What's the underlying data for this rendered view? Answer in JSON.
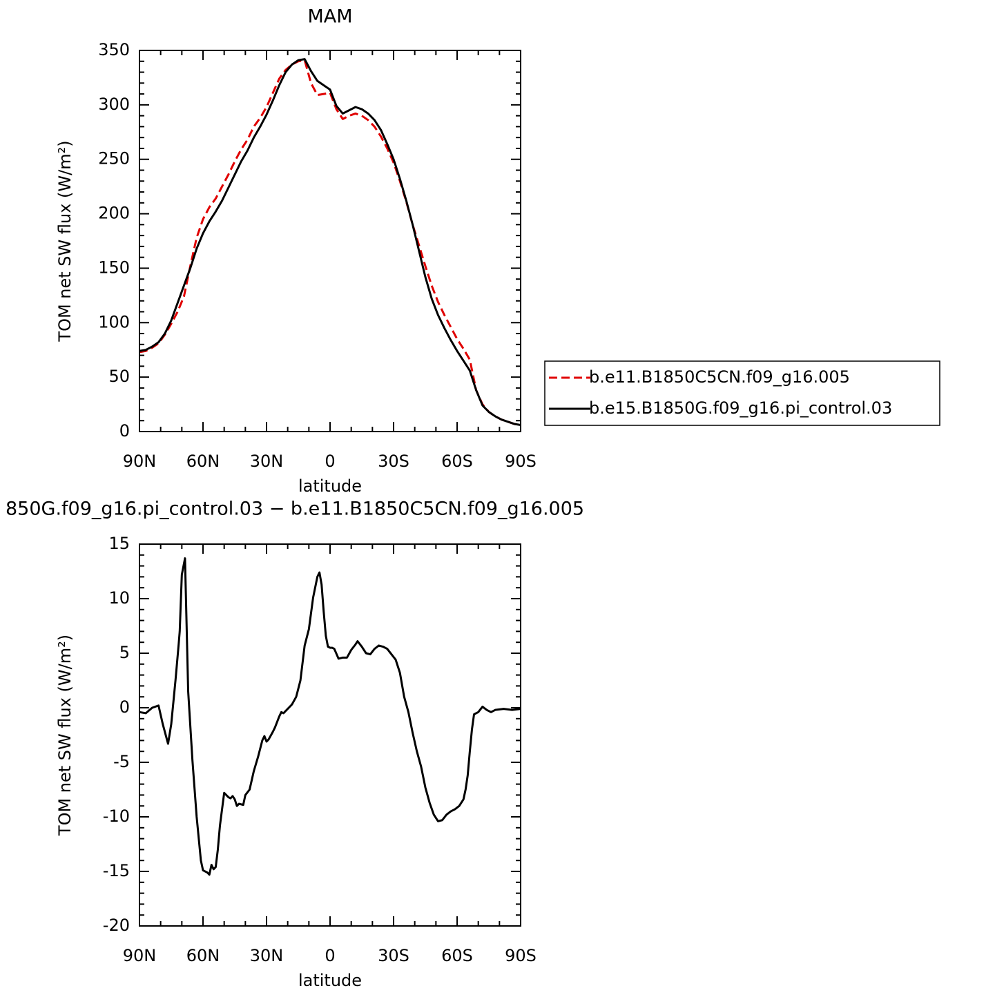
{
  "chart_data": [
    {
      "type": "line",
      "title": "MAM",
      "x_label": "latitude",
      "y_label": "TOM net SW flux (W/m²)",
      "xlim": [
        90,
        -90
      ],
      "ylim": [
        0,
        350
      ],
      "xticks": [
        {
          "value": 90,
          "label": "90N"
        },
        {
          "value": 60,
          "label": "60N"
        },
        {
          "value": 30,
          "label": "30N"
        },
        0,
        {
          "value": -30,
          "label": "30S"
        },
        {
          "value": -60,
          "label": "60S"
        },
        {
          "value": -90,
          "label": "90S"
        }
      ],
      "yticks": [
        0,
        50,
        100,
        150,
        200,
        250,
        300,
        350
      ],
      "legend": "right",
      "x": [
        90,
        87,
        84,
        81,
        78,
        75,
        72,
        69,
        66,
        63,
        60,
        57,
        54,
        51,
        48,
        45,
        42,
        39,
        36,
        33,
        30,
        27,
        24,
        21,
        18,
        15,
        12,
        9,
        6,
        3,
        0,
        -3,
        -6,
        -9,
        -12,
        -15,
        -18,
        -21,
        -24,
        -27,
        -30,
        -33,
        -36,
        -39,
        -42,
        -45,
        -48,
        -51,
        -54,
        -57,
        -60,
        -63,
        -66,
        -69,
        -72,
        -75,
        -78,
        -81,
        -84,
        -87,
        -90
      ],
      "series": [
        {
          "name": "b.e11.B1850C5CN.f09_g16.005",
          "color": "#e00000",
          "dashed": true,
          "values": [
            73,
            74,
            77,
            81,
            89,
            99,
            110,
            124,
            152,
            178,
            195,
            206,
            214,
            225,
            236,
            248,
            259,
            268,
            280,
            288,
            298,
            311,
            324,
            332,
            337,
            340,
            341,
            320,
            309,
            310,
            311,
            296,
            287,
            290,
            292,
            290,
            286,
            280,
            271,
            260,
            247,
            230,
            211,
            190,
            171,
            152,
            134,
            119,
            107,
            96,
            85,
            76,
            66,
            38,
            25,
            18,
            14,
            11,
            9,
            7,
            6
          ]
        },
        {
          "name": "b.e15.B1850G.f09_g16.pi_control.03",
          "color": "#000000",
          "dashed": false,
          "values": [
            74,
            75,
            78,
            82,
            90,
            102,
            118,
            134,
            150,
            168,
            182,
            193,
            202,
            212,
            224,
            236,
            248,
            258,
            270,
            280,
            291,
            304,
            318,
            330,
            337,
            341,
            342,
            331,
            322,
            318,
            314,
            299,
            292,
            295,
            298,
            296,
            292,
            286,
            277,
            264,
            250,
            232,
            212,
            190,
            166,
            142,
            122,
            107,
            95,
            84,
            74,
            65,
            56,
            38,
            24,
            18,
            14,
            11,
            9,
            7,
            6
          ]
        }
      ]
    },
    {
      "type": "line",
      "title": "850G.f09_g16.pi_control.03 − b.e11.B1850C5CN.f09_g16.005",
      "x_label": "latitude",
      "y_label": "TOM net SW flux (W/m²)",
      "xlim": [
        90,
        -90
      ],
      "ylim": [
        -20,
        15
      ],
      "xticks": [
        {
          "value": 90,
          "label": "90N"
        },
        {
          "value": 60,
          "label": "60N"
        },
        {
          "value": 30,
          "label": "30N"
        },
        0,
        {
          "value": -30,
          "label": "30S"
        },
        {
          "value": -60,
          "label": "60S"
        },
        {
          "value": -90,
          "label": "90S"
        }
      ],
      "yticks": [
        -20,
        -15,
        -10,
        -5,
        0,
        5,
        10,
        15
      ],
      "color": "#000000",
      "x": [
        90,
        87,
        84,
        81,
        79,
        76.5,
        75,
        73,
        71.5,
        71,
        70,
        68.5,
        67,
        65,
        63,
        61,
        60,
        58,
        57,
        56,
        55,
        54,
        53,
        52,
        50,
        48,
        47,
        46,
        45,
        44,
        43,
        41,
        40,
        38,
        36,
        34,
        32,
        31,
        30,
        29,
        27,
        26,
        24,
        23,
        22,
        20,
        18,
        16,
        14,
        12,
        10,
        8,
        6,
        5,
        4,
        3,
        2,
        1,
        0,
        -1,
        -2,
        -4,
        -6,
        -8,
        -10,
        -12,
        -13,
        -15,
        -17,
        -19,
        -21,
        -23,
        -25,
        -27,
        -29,
        -31,
        -33,
        -35,
        -37,
        -39,
        -41,
        -43,
        -45,
        -47,
        -49,
        -51,
        -53,
        -55,
        -57,
        -59,
        -61,
        -63,
        -64,
        -65,
        -66,
        -67,
        -68,
        -70,
        -72,
        -74,
        -76,
        -78,
        -82,
        -86,
        -90
      ],
      "values": [
        -0.4,
        -0.5,
        0.0,
        0.2,
        -1.5,
        -3.3,
        -1.5,
        2.5,
        5.8,
        7,
        12.2,
        13.7,
        1.5,
        -4.8,
        -10,
        -14,
        -14.9,
        -15.1,
        -15.3,
        -14.4,
        -14.8,
        -14.6,
        -13,
        -10.8,
        -7.8,
        -8.2,
        -8.3,
        -8.1,
        -8.4,
        -9,
        -8.8,
        -8.9,
        -8.0,
        -7.5,
        -5.8,
        -4.5,
        -3.0,
        -2.6,
        -3.1,
        -2.9,
        -2.2,
        -1.8,
        -0.8,
        -0.4,
        -0.5,
        -0.1,
        0.3,
        1.0,
        2.5,
        5.7,
        7.2,
        10.1,
        12,
        12.4,
        11.3,
        8.8,
        6.6,
        5.6,
        5.5,
        5.5,
        5.4,
        4.5,
        4.6,
        4.6,
        5.3,
        5.8,
        6.1,
        5.6,
        5.0,
        4.9,
        5.4,
        5.7,
        5.6,
        5.4,
        4.9,
        4.4,
        3.2,
        1.0,
        -0.4,
        -2.3,
        -4.0,
        -5.4,
        -7.3,
        -8.7,
        -9.8,
        -10.4,
        -10.3,
        -9.8,
        -9.5,
        -9.3,
        -9.0,
        -8.4,
        -7.5,
        -6.2,
        -4.0,
        -2.0,
        -0.6,
        -0.4,
        0.1,
        -0.2,
        -0.4,
        -0.2,
        -0.1,
        -0.2,
        -0.1
      ]
    }
  ]
}
